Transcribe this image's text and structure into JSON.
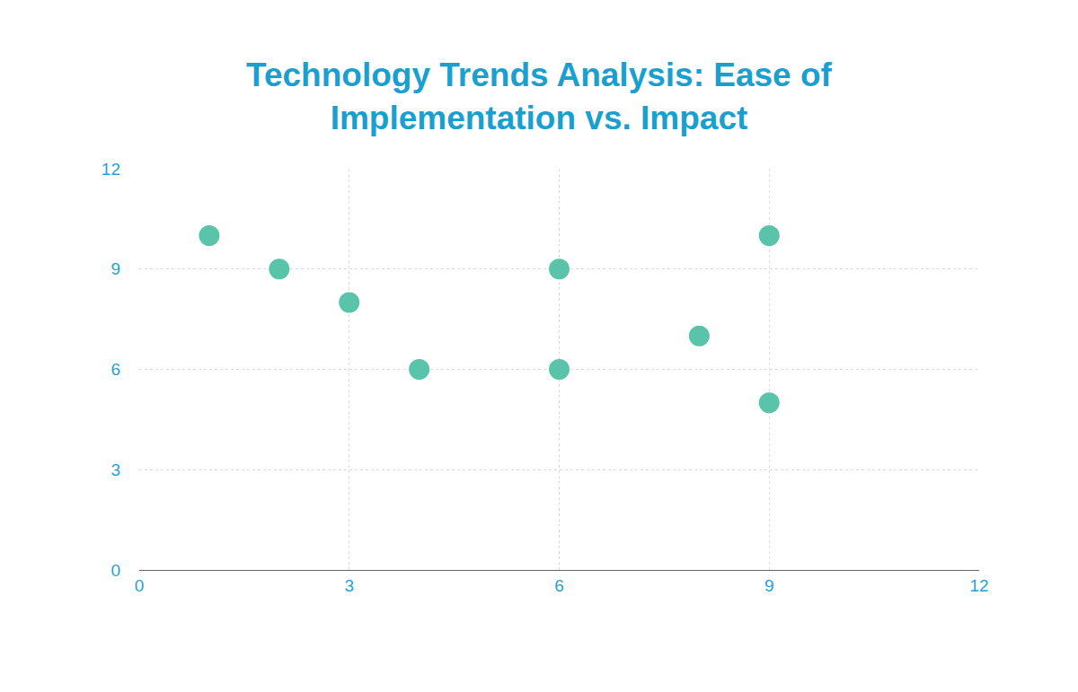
{
  "chart_data": {
    "type": "scatter",
    "title": "Technology Trends Analysis: Ease of Implementation vs. Impact",
    "x": [
      1,
      2,
      3,
      4,
      6,
      6,
      8,
      9,
      9
    ],
    "values": [
      10,
      9,
      8,
      6,
      9,
      6,
      7,
      10,
      5
    ],
    "color": "#5ac4aa",
    "marker": "circle",
    "xlim": [
      0,
      12
    ],
    "xticks": [
      0,
      3,
      6,
      9,
      12
    ],
    "ylim": [
      0,
      12
    ],
    "yticks": [
      0,
      3,
      6,
      9,
      12
    ],
    "grid": true
  }
}
